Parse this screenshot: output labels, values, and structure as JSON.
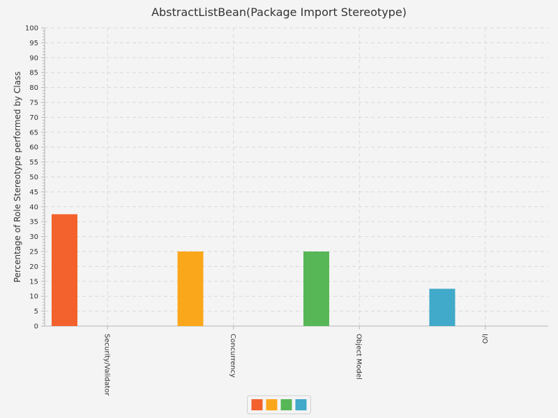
{
  "chart_data": {
    "type": "bar",
    "title": "AbstractListBean(Package Import Stereotype)",
    "xlabel": "",
    "ylabel": "Percentage of Role Stereotype performed by Class",
    "ylim": [
      0,
      100
    ],
    "ytick_step": 5,
    "grid": true,
    "legend_placement": "bottom-center",
    "categories": [
      "Security/Validator",
      "Concurrency",
      "Object Model",
      "I/O"
    ],
    "values": [
      37.5,
      25,
      25,
      12.5
    ],
    "colors": [
      "#f3622d",
      "#fba71b",
      "#57b757",
      "#41a9c9"
    ]
  }
}
